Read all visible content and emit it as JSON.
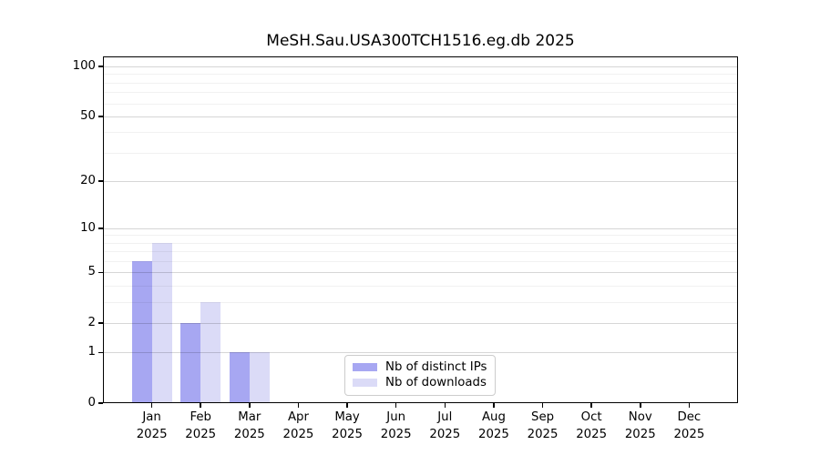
{
  "figure": {
    "title": "MeSH.Sau.USA300TCH1516.eg.db 2025"
  },
  "chart_data": {
    "type": "bar",
    "title": "MeSH.Sau.USA300TCH1516.eg.db 2025",
    "categories": [
      "Jan",
      "Feb",
      "Mar",
      "Apr",
      "May",
      "Jun",
      "Jul",
      "Aug",
      "Sep",
      "Oct",
      "Nov",
      "Dec"
    ],
    "category_year": "2025",
    "series": [
      {
        "name": "Nb of distinct IPs",
        "color": "#a7a7f2",
        "values": [
          6,
          2,
          1,
          0,
          0,
          0,
          0,
          0,
          0,
          0,
          0,
          0
        ]
      },
      {
        "name": "Nb of downloads",
        "color": "#dbdbf7",
        "values": [
          8,
          3,
          1,
          0,
          0,
          0,
          0,
          0,
          0,
          0,
          0,
          0
        ]
      }
    ],
    "xlabel": "",
    "ylabel": "",
    "yscale": "log1p",
    "ylim": [
      0,
      115
    ],
    "yticks": [
      0,
      1,
      2,
      5,
      10,
      20,
      50,
      100
    ],
    "yticks_minor": [
      3,
      4,
      6,
      7,
      8,
      9,
      30,
      40,
      60,
      70,
      80,
      90
    ],
    "grid": true,
    "legend_position": "lower center"
  }
}
